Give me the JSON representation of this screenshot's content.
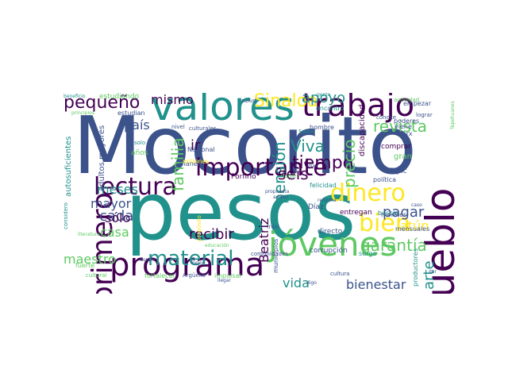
{
  "colors": {
    "background": "#ffffff",
    "palette": [
      "#440154",
      "#3b528b",
      "#21918c",
      "#5ec962",
      "#fde725"
    ]
  },
  "words": [
    "Mocorito",
    "pesos",
    "valores",
    "trabajo",
    "jóvenes",
    "programa",
    "pueblo",
    "lectura",
    "importante",
    "dinero",
    "pequeño",
    "primero",
    "material",
    "bien",
    "Sinaloa",
    "revista",
    "garantía",
    "tiempo",
    "pensión",
    "Viva",
    "seis",
    "precio",
    "familia",
    "apoyo",
    "mismo",
    "país",
    "meses",
    "mayor",
    "cada",
    "casa",
    "sólo",
    "maestro",
    "recibir",
    "pagar",
    "atún",
    "vida",
    "bienestar",
    "arte",
    "Beatriz",
    "ir",
    "discapacidad",
    "política",
    "Tepic",
    "comprar",
    "gran",
    "estudiando",
    "estudian",
    "autosuficientes",
    "adultos mayores",
    "años",
    "Nacional",
    "manera",
    "millones",
    "Porfirio",
    "felicidad",
    "frijol",
    "entregan",
    "buscar",
    "morales",
    "directo",
    "corrupción",
    "Díaz",
    "mensuales",
    "productores",
    "municipios",
    "cultura",
    "impulsar",
    "fortalecer",
    "Argüello",
    "cultural",
    "considero",
    "fuerte",
    "donde",
    "comunidades",
    "nadie",
    "salud",
    "culturales",
    "nivel",
    "Solón",
    "hombre",
    "encontró",
    "poderes",
    "empezar",
    "actividad",
    "viene",
    "lograr",
    "conoce",
    "principios",
    "beneficio",
    "literatura",
    "mejor",
    "llegar",
    "surge",
    "digo",
    "dijo",
    "educación",
    "gente",
    "propósito",
    "propuesta",
    "adulto",
    "Marx",
    "caso",
    "reforma",
    "solo",
    "Tepehuanes",
    "dar"
  ]
}
